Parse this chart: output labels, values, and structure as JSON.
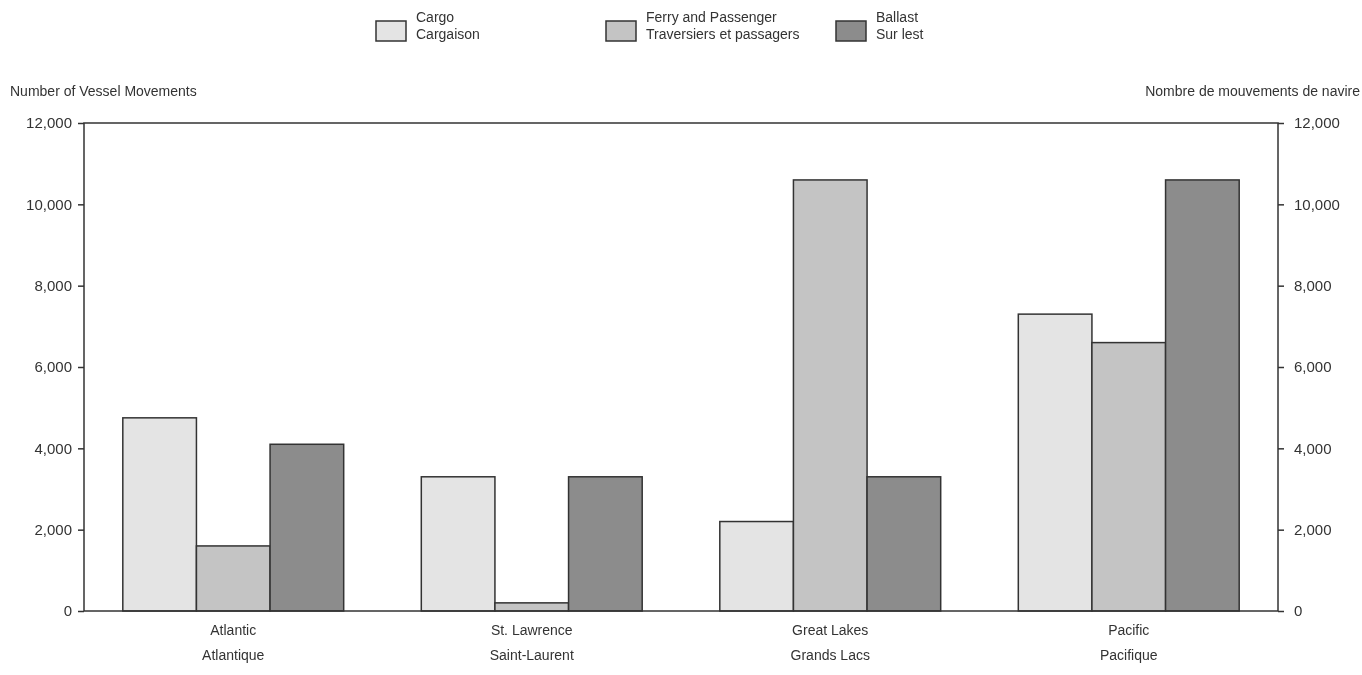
{
  "chart_data": {
    "type": "bar",
    "categories": [
      "Atlantic\nAtlantique",
      "St. Lawrence\nSaint-Laurent",
      "Great Lakes\nGrands Lacs",
      "Pacific\nPacifique"
    ],
    "series": [
      {
        "name": "Cargo\nCargaison",
        "color": "#e4e4e4",
        "values": [
          4750,
          3300,
          2200,
          7300
        ]
      },
      {
        "name": "Ferry and Passenger\nTraversiers et passagers",
        "color": "#c4c4c4",
        "values": [
          1600,
          200,
          10600,
          6600
        ]
      },
      {
        "name": "Ballast\nSur lest",
        "color": "#8c8c8c",
        "values": [
          4100,
          3300,
          3300,
          10600
        ]
      }
    ],
    "ylabel": "Number of Vessel Movements",
    "y2label": "Nombre de mouvements de navire",
    "ylim": [
      0,
      12000
    ],
    "yticks": [
      {
        "value": 0,
        "label": "0"
      },
      {
        "value": 2000,
        "label": "2,000"
      },
      {
        "value": 4000,
        "label": "4,000"
      },
      {
        "value": 6000,
        "label": "6,000"
      },
      {
        "value": 8000,
        "label": "8,000"
      },
      {
        "value": 10000,
        "label": "10,000"
      },
      {
        "value": 12000,
        "label": "12,000"
      }
    ],
    "y2lim": [
      0,
      12000
    ],
    "y2ticks": [
      {
        "value": 0,
        "label": "0"
      },
      {
        "value": 2000,
        "label": "2,000"
      },
      {
        "value": 4000,
        "label": "4,000"
      },
      {
        "value": 6000,
        "label": "6,000"
      },
      {
        "value": 8000,
        "label": "8,000"
      },
      {
        "value": 10000,
        "label": "10,000"
      },
      {
        "value": 12000,
        "label": "12,000"
      }
    ],
    "legend": "top",
    "grid": false
  }
}
